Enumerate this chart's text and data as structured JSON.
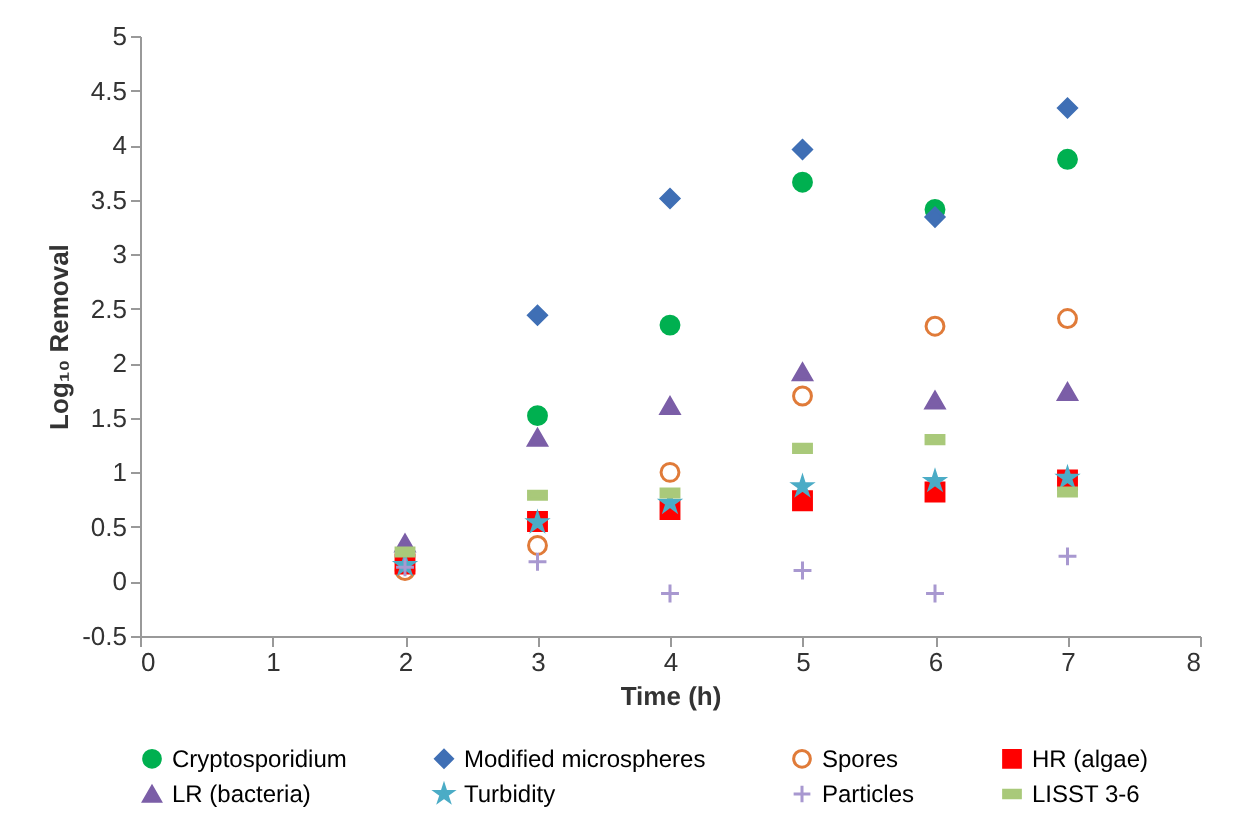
{
  "chart_data": {
    "type": "scatter",
    "xlabel": "Time (h)",
    "ylabel": "Log₁₀ Removal",
    "x": [
      2,
      3,
      4,
      5,
      6,
      7
    ],
    "xlim": [
      0,
      8
    ],
    "xticks": [
      0,
      1,
      2,
      3,
      4,
      5,
      6,
      7,
      8
    ],
    "ylim": [
      -0.5,
      5
    ],
    "yticks": [
      -0.5,
      0,
      0.5,
      1,
      1.5,
      2,
      2.5,
      3,
      3.5,
      4,
      4.5,
      5
    ],
    "grid": false,
    "legend": "bottom",
    "series": [
      {
        "name": "Cryptosporidium",
        "color": "#00b050",
        "marker": "circle",
        "values": [
          null,
          1.52,
          2.35,
          3.66,
          3.41,
          3.87
        ]
      },
      {
        "name": "Modified microspheres",
        "color": "#3f6fb5",
        "marker": "diamond",
        "values": [
          null,
          2.44,
          3.51,
          3.96,
          3.34,
          4.34
        ]
      },
      {
        "name": "Spores",
        "color": "#e07b39",
        "marker": "circle-open",
        "values": [
          0.1,
          0.33,
          1.0,
          1.7,
          2.34,
          2.41
        ]
      },
      {
        "name": "HR (algae)",
        "color": "#ff0000",
        "marker": "square",
        "values": [
          0.16,
          0.55,
          0.66,
          0.74,
          0.82,
          0.93
        ]
      },
      {
        "name": "LR (bacteria)",
        "color": "#7b5ea7",
        "marker": "triangle",
        "values": [
          0.35,
          1.32,
          1.61,
          1.92,
          1.66,
          1.74
        ]
      },
      {
        "name": "Turbidity",
        "color": "#4bacc6",
        "marker": "star",
        "values": [
          0.15,
          0.54,
          0.72,
          0.87,
          0.92,
          0.95
        ]
      },
      {
        "name": "Particles",
        "color": "#a898d0",
        "marker": "cross",
        "values": [
          0.13,
          0.18,
          -0.11,
          0.1,
          -0.11,
          0.23
        ]
      },
      {
        "name": "LISST 3-6",
        "color": "#a9c97a",
        "values": [
          0.27,
          0.79,
          0.81,
          1.22,
          1.3,
          0.82
        ]
      }
    ]
  }
}
